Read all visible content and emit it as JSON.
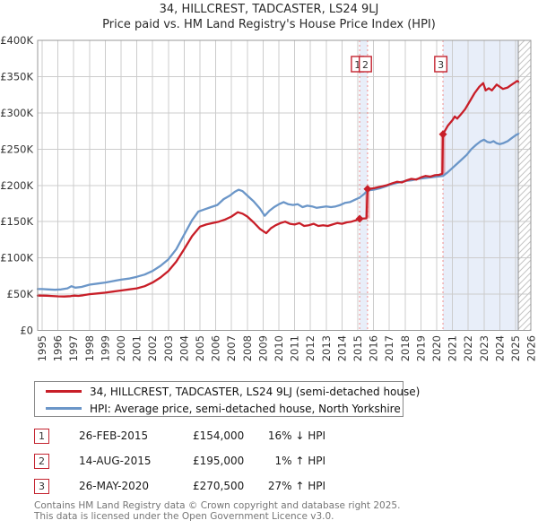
{
  "title": {
    "line1": "34, HILLCREST, TADCASTER, LS24 9LJ",
    "line2": "Price paid vs. HM Land Registry's House Price Index (HPI)"
  },
  "legend": {
    "items": [
      {
        "label": "34, HILLCREST, TADCASTER, LS24 9LJ (semi-detached house)",
        "color": "#c81e28"
      },
      {
        "label": "HPI: Average price, semi-detached house, North Yorkshire",
        "color": "#6b96c8"
      }
    ]
  },
  "transactions": [
    {
      "num": "1",
      "date": "26-FEB-2015",
      "price": "£154,000",
      "hpi_rel": "16% ↓ HPI"
    },
    {
      "num": "2",
      "date": "14-AUG-2015",
      "price": "£195,000",
      "hpi_rel": "1% ↑ HPI"
    },
    {
      "num": "3",
      "date": "26-MAY-2020",
      "price": "£270,500",
      "hpi_rel": "27% ↑ HPI"
    }
  ],
  "footer": {
    "line1": "Contains HM Land Registry data © Crown copyright and database right 2025.",
    "line2": "This data is licensed under the Open Government Licence v3.0."
  },
  "chart_data": {
    "type": "line",
    "title": "34, HILLCREST, TADCASTER, LS24 9LJ — Price paid vs. HPI",
    "x_axis": {
      "start_year": 1995,
      "end_year": 2026,
      "tick_every": 1,
      "labels_rotated": true
    },
    "y_axis": {
      "range_k": [
        0,
        400
      ],
      "ticks": [
        {
          "value_k": 0,
          "label": "£0"
        },
        {
          "value_k": 50,
          "label": "£50K"
        },
        {
          "value_k": 100,
          "label": "£100K"
        },
        {
          "value_k": 150,
          "label": "£150K"
        },
        {
          "value_k": 200,
          "label": "£200K"
        },
        {
          "value_k": 250,
          "label": "£250K"
        },
        {
          "value_k": 300,
          "label": "£300K"
        },
        {
          "value_k": 350,
          "label": "£350K"
        },
        {
          "value_k": 400,
          "label": "£400K"
        }
      ]
    },
    "series": [
      {
        "id": "hpi",
        "name": "HPI: Average price, semi-detached house, North Yorkshire",
        "color": "#6b96c8",
        "points_year_value_k": [
          [
            1995.0,
            57
          ],
          [
            1995.4,
            56.5
          ],
          [
            1995.8,
            56
          ],
          [
            1996.2,
            56.5
          ],
          [
            1996.6,
            58
          ],
          [
            1996.85,
            61
          ],
          [
            1997.1,
            59
          ],
          [
            1997.5,
            60
          ],
          [
            1998.0,
            63
          ],
          [
            1998.5,
            64.5
          ],
          [
            1999.0,
            66
          ],
          [
            1999.5,
            68
          ],
          [
            2000.0,
            70
          ],
          [
            2000.5,
            71.5
          ],
          [
            2001.0,
            74
          ],
          [
            2001.5,
            77
          ],
          [
            2002.0,
            82
          ],
          [
            2002.5,
            89
          ],
          [
            2003.0,
            98
          ],
          [
            2003.5,
            112
          ],
          [
            2004.0,
            132
          ],
          [
            2004.5,
            152
          ],
          [
            2004.9,
            164
          ],
          [
            2005.3,
            167
          ],
          [
            2005.7,
            170
          ],
          [
            2006.1,
            173
          ],
          [
            2006.5,
            181
          ],
          [
            2006.9,
            186
          ],
          [
            2007.2,
            191
          ],
          [
            2007.45,
            194
          ],
          [
            2007.7,
            192
          ],
          [
            2008.0,
            186
          ],
          [
            2008.4,
            178
          ],
          [
            2008.8,
            168
          ],
          [
            2009.1,
            158
          ],
          [
            2009.4,
            165
          ],
          [
            2009.7,
            170
          ],
          [
            2010.0,
            174
          ],
          [
            2010.3,
            177
          ],
          [
            2010.6,
            174
          ],
          [
            2010.9,
            173
          ],
          [
            2011.2,
            174
          ],
          [
            2011.5,
            170
          ],
          [
            2011.8,
            172
          ],
          [
            2012.1,
            171
          ],
          [
            2012.4,
            169
          ],
          [
            2012.7,
            170
          ],
          [
            2013.0,
            171
          ],
          [
            2013.3,
            170
          ],
          [
            2013.6,
            171
          ],
          [
            2013.9,
            173
          ],
          [
            2014.2,
            176
          ],
          [
            2014.5,
            177
          ],
          [
            2014.8,
            180
          ],
          [
            2015.1,
            183
          ],
          [
            2015.4,
            188
          ],
          [
            2015.62,
            193
          ],
          [
            2016.0,
            194
          ],
          [
            2016.4,
            196
          ],
          [
            2016.8,
            199
          ],
          [
            2017.2,
            202
          ],
          [
            2017.6,
            204
          ],
          [
            2018.0,
            206
          ],
          [
            2018.4,
            207
          ],
          [
            2018.8,
            209
          ],
          [
            2019.2,
            210
          ],
          [
            2019.6,
            211
          ],
          [
            2020.0,
            212
          ],
          [
            2020.4,
            213
          ],
          [
            2020.7,
            218
          ],
          [
            2021.0,
            224
          ],
          [
            2021.3,
            230
          ],
          [
            2021.6,
            236
          ],
          [
            2021.9,
            242
          ],
          [
            2022.2,
            250
          ],
          [
            2022.5,
            256
          ],
          [
            2022.8,
            261
          ],
          [
            2023.0,
            263
          ],
          [
            2023.2,
            260
          ],
          [
            2023.4,
            259
          ],
          [
            2023.6,
            261
          ],
          [
            2023.8,
            258
          ],
          [
            2024.0,
            257
          ],
          [
            2024.2,
            258
          ],
          [
            2024.5,
            261
          ],
          [
            2024.8,
            266
          ],
          [
            2025.0,
            269
          ],
          [
            2025.17,
            271
          ]
        ]
      },
      {
        "id": "price_paid",
        "name": "34, HILLCREST, TADCASTER, LS24 9LJ (semi-detached house)",
        "color": "#c81e28",
        "points_year_value_k": [
          [
            1995.0,
            48
          ],
          [
            1995.3,
            47.8
          ],
          [
            1995.6,
            47.5
          ],
          [
            1996.0,
            47
          ],
          [
            1996.4,
            46.8
          ],
          [
            1996.8,
            47.2
          ],
          [
            1997.0,
            48
          ],
          [
            1997.3,
            47.6
          ],
          [
            1997.6,
            48.5
          ],
          [
            1998.0,
            50
          ],
          [
            1998.5,
            51
          ],
          [
            1999.0,
            52
          ],
          [
            1999.5,
            53.5
          ],
          [
            2000.0,
            55
          ],
          [
            2000.5,
            56.5
          ],
          [
            2001.0,
            58
          ],
          [
            2001.5,
            61
          ],
          [
            2002.0,
            66
          ],
          [
            2002.5,
            73
          ],
          [
            2003.0,
            82
          ],
          [
            2003.5,
            95
          ],
          [
            2004.0,
            112
          ],
          [
            2004.5,
            130
          ],
          [
            2005.0,
            143
          ],
          [
            2005.4,
            146
          ],
          [
            2005.8,
            148
          ],
          [
            2006.2,
            150
          ],
          [
            2006.6,
            153
          ],
          [
            2007.0,
            157
          ],
          [
            2007.4,
            163
          ],
          [
            2007.7,
            161
          ],
          [
            2008.0,
            157
          ],
          [
            2008.4,
            149
          ],
          [
            2008.8,
            140
          ],
          [
            2009.2,
            134
          ],
          [
            2009.5,
            141
          ],
          [
            2009.8,
            145
          ],
          [
            2010.1,
            148
          ],
          [
            2010.4,
            150
          ],
          [
            2010.7,
            147
          ],
          [
            2011.0,
            146
          ],
          [
            2011.3,
            148
          ],
          [
            2011.6,
            144
          ],
          [
            2011.9,
            145
          ],
          [
            2012.2,
            147
          ],
          [
            2012.5,
            144
          ],
          [
            2012.8,
            145
          ],
          [
            2013.1,
            144
          ],
          [
            2013.4,
            146
          ],
          [
            2013.7,
            148
          ],
          [
            2014.0,
            147
          ],
          [
            2014.3,
            149
          ],
          [
            2014.6,
            150
          ],
          [
            2014.9,
            152
          ],
          [
            2015.12,
            154
          ],
          [
            2015.55,
            154.5
          ],
          [
            2015.62,
            195
          ],
          [
            2016.0,
            196
          ],
          [
            2016.4,
            198
          ],
          [
            2016.8,
            200
          ],
          [
            2017.2,
            203
          ],
          [
            2017.5,
            205
          ],
          [
            2017.8,
            204
          ],
          [
            2018.1,
            207
          ],
          [
            2018.4,
            209
          ],
          [
            2018.7,
            208
          ],
          [
            2019.0,
            211
          ],
          [
            2019.3,
            213
          ],
          [
            2019.6,
            212
          ],
          [
            2019.9,
            214
          ],
          [
            2020.15,
            214.5
          ],
          [
            2020.36,
            216
          ],
          [
            2020.4,
            270.5
          ],
          [
            2020.7,
            282
          ],
          [
            2021.0,
            290
          ],
          [
            2021.15,
            295
          ],
          [
            2021.3,
            292
          ],
          [
            2021.5,
            297
          ],
          [
            2021.8,
            305
          ],
          [
            2022.1,
            316
          ],
          [
            2022.4,
            327
          ],
          [
            2022.7,
            336
          ],
          [
            2022.95,
            341
          ],
          [
            2023.1,
            331
          ],
          [
            2023.3,
            334
          ],
          [
            2023.5,
            331
          ],
          [
            2023.8,
            339
          ],
          [
            2024.0,
            336
          ],
          [
            2024.2,
            333
          ],
          [
            2024.5,
            335
          ],
          [
            2024.7,
            338
          ],
          [
            2024.9,
            341
          ],
          [
            2025.1,
            344
          ],
          [
            2025.17,
            343
          ]
        ]
      }
    ],
    "sale_markers": [
      {
        "label": "1",
        "year": 2015.12,
        "value_k": 154,
        "date": "26-FEB-2015"
      },
      {
        "label": "2",
        "year": 2015.62,
        "value_k": 195,
        "jump_from_k": 154.5,
        "date": "14-AUG-2015"
      },
      {
        "label": "3",
        "year": 2020.4,
        "value_k": 270.5,
        "jump_from_k": 216,
        "date": "26-MAY-2020"
      }
    ],
    "shaded_regions_years": [
      [
        2015.12,
        2015.62
      ],
      [
        2020.4,
        2025.17
      ]
    ],
    "hatch_region_years": [
      2025.17,
      2026.0
    ],
    "data_end_year": 2025.17,
    "colors": {
      "price": "#c81e28",
      "hpi": "#6b96c8",
      "shade": "#e8eef9",
      "dashed": "#ef8d8d",
      "grid": "#cccccc",
      "border": "#9a9a9a",
      "hatch": "#c4c4c4",
      "marker_box_border": "#c42430",
      "jump_overlay": "rgba(200,30,40,0.35)"
    }
  }
}
